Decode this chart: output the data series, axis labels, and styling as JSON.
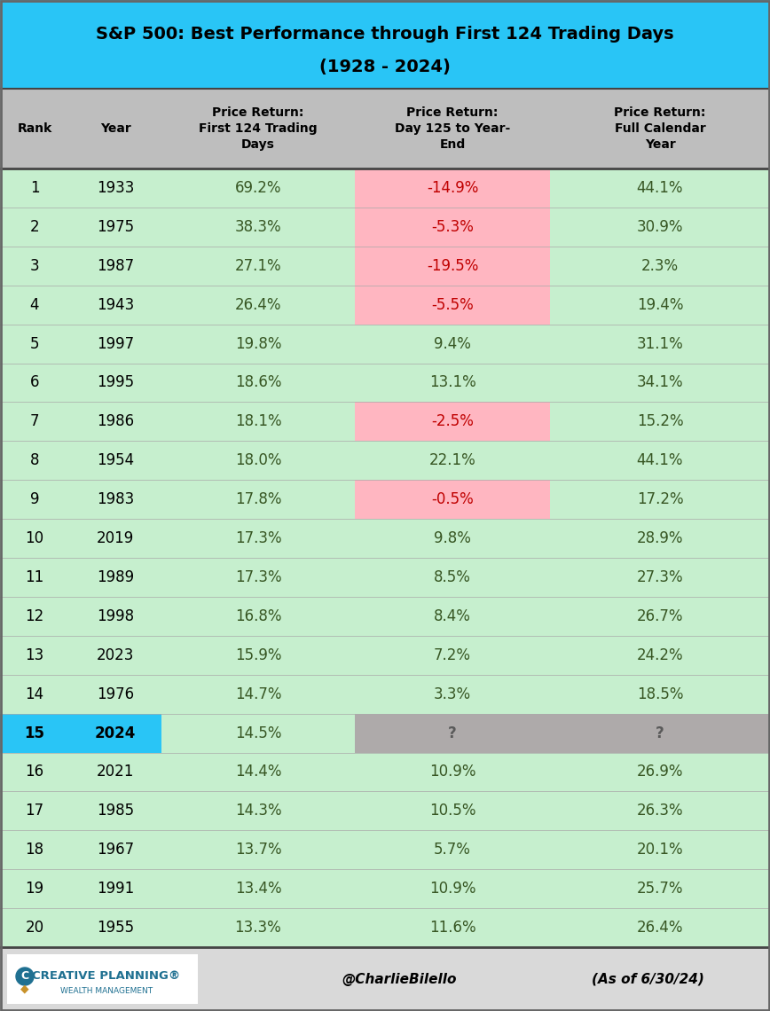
{
  "title_line1": "S&P 500: Best Performance through First 124 Trading Days",
  "title_line2": "(1928 - 2024)",
  "title_bg": "#29C5F6",
  "header_bg": "#BEBEBE",
  "rows": [
    [
      1,
      1933,
      "69.2%",
      "-14.9%",
      "44.1%"
    ],
    [
      2,
      1975,
      "38.3%",
      "-5.3%",
      "30.9%"
    ],
    [
      3,
      1987,
      "27.1%",
      "-19.5%",
      "2.3%"
    ],
    [
      4,
      1943,
      "26.4%",
      "-5.5%",
      "19.4%"
    ],
    [
      5,
      1997,
      "19.8%",
      "9.4%",
      "31.1%"
    ],
    [
      6,
      1995,
      "18.6%",
      "13.1%",
      "34.1%"
    ],
    [
      7,
      1986,
      "18.1%",
      "-2.5%",
      "15.2%"
    ],
    [
      8,
      1954,
      "18.0%",
      "22.1%",
      "44.1%"
    ],
    [
      9,
      1983,
      "17.8%",
      "-0.5%",
      "17.2%"
    ],
    [
      10,
      2019,
      "17.3%",
      "9.8%",
      "28.9%"
    ],
    [
      11,
      1989,
      "17.3%",
      "8.5%",
      "27.3%"
    ],
    [
      12,
      1998,
      "16.8%",
      "8.4%",
      "26.7%"
    ],
    [
      13,
      2023,
      "15.9%",
      "7.2%",
      "24.2%"
    ],
    [
      14,
      1976,
      "14.7%",
      "3.3%",
      "18.5%"
    ],
    [
      15,
      2024,
      "14.5%",
      "?",
      "?"
    ],
    [
      16,
      2021,
      "14.4%",
      "10.9%",
      "26.9%"
    ],
    [
      17,
      1985,
      "14.3%",
      "10.5%",
      "26.3%"
    ],
    [
      18,
      1967,
      "13.7%",
      "5.7%",
      "20.1%"
    ],
    [
      19,
      1991,
      "13.4%",
      "10.9%",
      "25.7%"
    ],
    [
      20,
      1955,
      "13.3%",
      "11.6%",
      "26.4%"
    ]
  ],
  "green_bg": "#C6EFCE",
  "pink_bg": "#FFB6C1",
  "gray_cell_bg": "#AEAAAA",
  "cyan_row_bg": "#29C5F6",
  "white_bg": "#FFFFFF",
  "footer_bg": "#D9D9D9",
  "green_text": "#375623",
  "red_text": "#C00000",
  "black_text": "#000000",
  "gray_text": "#595959",
  "cp_blue": "#1F7091",
  "cp_gold": "#C8922A",
  "footer_text": "@CharlieBilello",
  "footer_date": "(As of 6/30/24)",
  "title_fontsize": 14,
  "header_fontsize": 10,
  "data_fontsize": 12,
  "footer_fontsize": 11
}
